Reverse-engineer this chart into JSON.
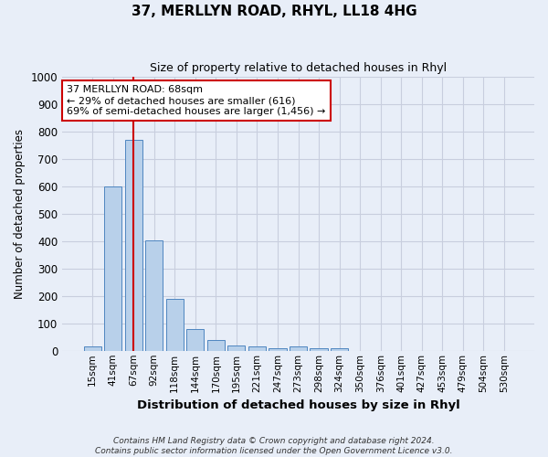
{
  "title": "37, MERLLYN ROAD, RHYL, LL18 4HG",
  "subtitle": "Size of property relative to detached houses in Rhyl",
  "xlabel": "Distribution of detached houses by size in Rhyl",
  "ylabel": "Number of detached properties",
  "bar_labels": [
    "15sqm",
    "41sqm",
    "67sqm",
    "92sqm",
    "118sqm",
    "144sqm",
    "170sqm",
    "195sqm",
    "221sqm",
    "247sqm",
    "273sqm",
    "298sqm",
    "324sqm",
    "350sqm",
    "376sqm",
    "401sqm",
    "427sqm",
    "453sqm",
    "479sqm",
    "504sqm",
    "530sqm"
  ],
  "bar_values": [
    15,
    600,
    770,
    403,
    190,
    78,
    40,
    18,
    17,
    10,
    15,
    9,
    8,
    0,
    0,
    0,
    0,
    0,
    0,
    0,
    0
  ],
  "bar_color": "#b8d0ea",
  "bar_edge_color": "#4f86c0",
  "highlight_bar_index": 2,
  "highlight_line_color": "#cc0000",
  "ylim": [
    0,
    1000
  ],
  "yticks": [
    0,
    100,
    200,
    300,
    400,
    500,
    600,
    700,
    800,
    900,
    1000
  ],
  "annotation_line1": "37 MERLLYN ROAD: 68sqm",
  "annotation_line2": "← 29% of detached houses are smaller (616)",
  "annotation_line3": "69% of semi-detached houses are larger (1,456) →",
  "annotation_box_color": "#ffffff",
  "annotation_box_edge": "#cc0000",
  "footer_line1": "Contains HM Land Registry data © Crown copyright and database right 2024.",
  "footer_line2": "Contains public sector information licensed under the Open Government Licence v3.0.",
  "bg_color": "#e8eef8",
  "plot_bg_color": "#e8eef8",
  "grid_color": "#c8cede",
  "title_fontsize": 11,
  "subtitle_fontsize": 9
}
